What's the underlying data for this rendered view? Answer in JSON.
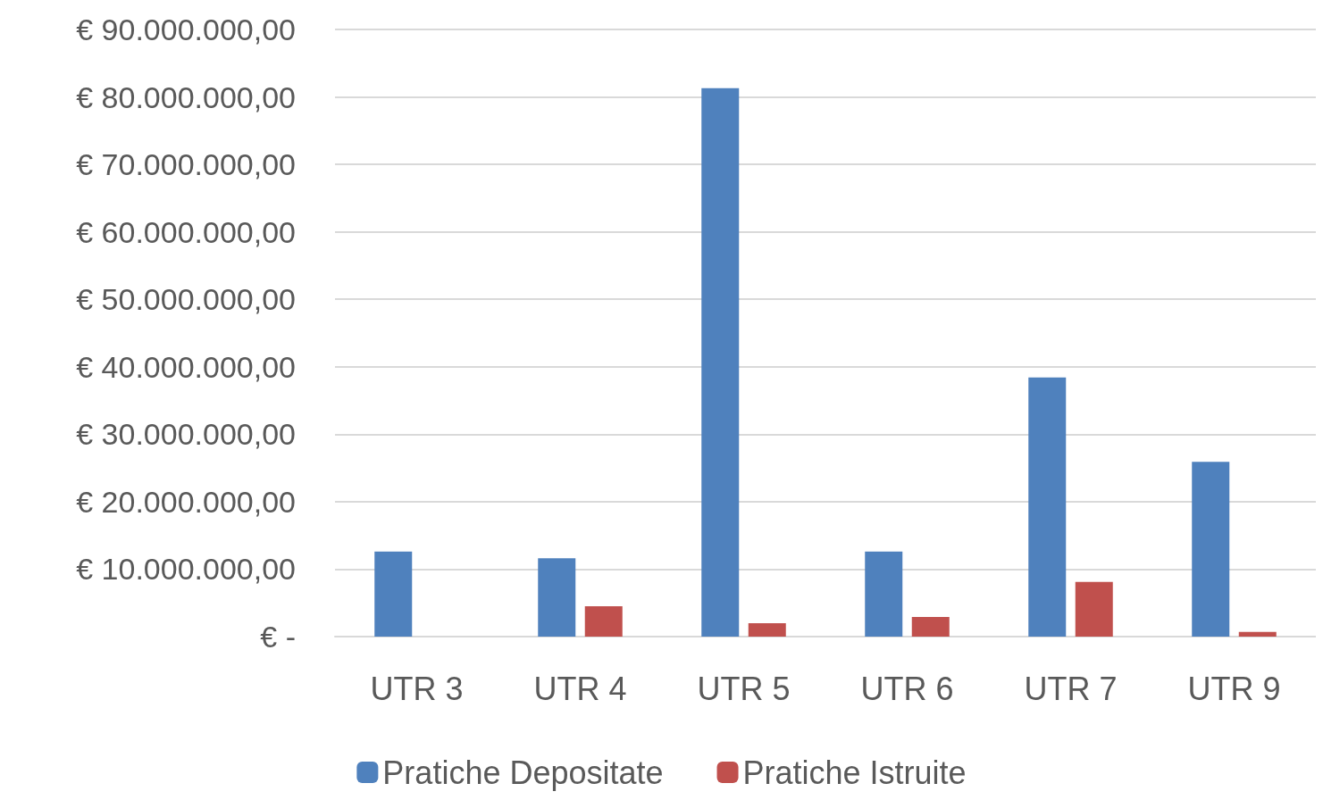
{
  "chart_data": {
    "type": "bar",
    "categories": [
      "UTR 3",
      "UTR 4",
      "UTR 5",
      "UTR 6",
      "UTR 7",
      "UTR 9"
    ],
    "series": [
      {
        "name": "Pratiche Depositate",
        "color": "#4f81bd",
        "values": [
          12600000,
          11600000,
          81300000,
          12600000,
          38400000,
          25900000
        ]
      },
      {
        "name": "Pratiche Istruite",
        "color": "#c0504d",
        "values": [
          0,
          4500000,
          2000000,
          2900000,
          8100000,
          700000
        ]
      }
    ],
    "ylim": [
      0,
      90000000
    ],
    "yticks": [
      {
        "value": 0,
        "label": "€ -"
      },
      {
        "value": 10000000,
        "label": "€ 10.000.000,00"
      },
      {
        "value": 20000000,
        "label": "€ 20.000.000,00"
      },
      {
        "value": 30000000,
        "label": "€ 30.000.000,00"
      },
      {
        "value": 40000000,
        "label": "€ 40.000.000,00"
      },
      {
        "value": 50000000,
        "label": "€ 50.000.000,00"
      },
      {
        "value": 60000000,
        "label": "€ 60.000.000,00"
      },
      {
        "value": 70000000,
        "label": "€ 70.000.000,00"
      },
      {
        "value": 80000000,
        "label": "€ 80.000.000,00"
      },
      {
        "value": 90000000,
        "label": "€ 90.000.000,00"
      }
    ],
    "grid": "y",
    "legend": "bottom"
  }
}
